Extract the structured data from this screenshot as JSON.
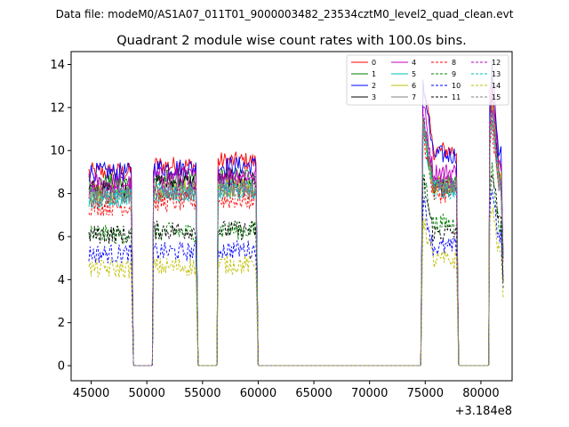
{
  "figure": {
    "suptitle": "Data file: modeM0/AS1A07_011T01_9000003482_23534cztM0_level2_quad_clean.evt"
  },
  "chart_data": {
    "type": "line",
    "title": "Quadrant 2 module wise count rates with 100.0s bins.",
    "xlabel": "",
    "ylabel": "",
    "x_offset_label": "+3.184e8",
    "xlim": [
      43200,
      82800
    ],
    "ylim": [
      -0.7,
      14.6
    ],
    "x_ticks": [
      45000,
      50000,
      55000,
      60000,
      65000,
      70000,
      75000,
      80000
    ],
    "x_tick_labels": [
      "45000",
      "50000",
      "55000",
      "60000",
      "65000",
      "70000",
      "75000",
      "80000"
    ],
    "y_ticks": [
      0,
      2,
      4,
      6,
      8,
      10,
      12,
      14
    ],
    "y_tick_labels": [
      "0",
      "2",
      "4",
      "6",
      "8",
      "10",
      "12",
      "14"
    ],
    "grid": false,
    "legend_position": "top-right",
    "gti_segments": [
      [
        44800,
        48600
      ],
      [
        50600,
        54400
      ],
      [
        56400,
        59800
      ],
      [
        74800,
        77800
      ],
      [
        80800,
        81800
      ]
    ],
    "gap_points": [
      [
        48800,
        0.05
      ],
      [
        48900,
        0
      ],
      [
        50400,
        0
      ],
      [
        50500,
        0.05
      ],
      [
        54600,
        0.05
      ],
      [
        54700,
        0
      ],
      [
        56200,
        0
      ],
      [
        56300,
        0.05
      ],
      [
        60000,
        0.05
      ],
      [
        60100,
        0
      ],
      [
        74500,
        0
      ],
      [
        74600,
        0.05
      ],
      [
        78000,
        0.05
      ],
      [
        78100,
        0
      ],
      [
        80600,
        0
      ],
      [
        80700,
        0.05
      ],
      [
        82000,
        4.8
      ]
    ],
    "series": [
      {
        "name": "0",
        "color": "#ff0000",
        "dash": "solid",
        "levels": [
          9.0,
          9.3,
          9.5,
          10.0,
          9.4
        ],
        "flare": 1.5
      },
      {
        "name": "1",
        "color": "#008000",
        "dash": "solid",
        "levels": [
          8.5,
          8.7,
          8.8,
          8.4,
          8.9
        ],
        "flare": 1.4
      },
      {
        "name": "2",
        "color": "#0000ff",
        "dash": "solid",
        "levels": [
          9.0,
          9.2,
          9.3,
          9.8,
          10.0
        ],
        "flare": 1.6
      },
      {
        "name": "3",
        "color": "#000000",
        "dash": "solid",
        "levels": [
          8.2,
          8.5,
          8.6,
          8.3,
          8.8
        ],
        "flare": 1.4
      },
      {
        "name": "4",
        "color": "#bf00bf",
        "dash": "solid",
        "levels": [
          8.5,
          8.8,
          8.9,
          9.0,
          9.2
        ],
        "flare": 1.5
      },
      {
        "name": "5",
        "color": "#00bfbf",
        "dash": "solid",
        "levels": [
          7.8,
          8.0,
          8.2,
          8.2,
          8.6
        ],
        "flare": 1.4
      },
      {
        "name": "6",
        "color": "#bfbf00",
        "dash": "solid",
        "levels": [
          8.0,
          8.2,
          8.3,
          8.4,
          8.7
        ],
        "flare": 1.3
      },
      {
        "name": "7",
        "color": "#808080",
        "dash": "solid",
        "levels": [
          7.9,
          8.1,
          8.2,
          8.4,
          8.6
        ],
        "flare": 1.4
      },
      {
        "name": "8",
        "color": "#ff0000",
        "dash": "dashed",
        "levels": [
          7.4,
          7.6,
          7.7,
          8.0,
          8.1
        ],
        "flare": 1.3
      },
      {
        "name": "9",
        "color": "#008000",
        "dash": "dashed",
        "levels": [
          6.1,
          6.2,
          6.3,
          6.6,
          6.5
        ],
        "flare": 1.1
      },
      {
        "name": "10",
        "color": "#0000ff",
        "dash": "dashed",
        "levels": [
          5.2,
          5.3,
          5.4,
          5.5,
          5.9
        ],
        "flare": 1.0
      },
      {
        "name": "11",
        "color": "#000000",
        "dash": "dashed",
        "levels": [
          6.1,
          6.3,
          6.3,
          6.2,
          6.6
        ],
        "flare": 1.1
      },
      {
        "name": "12",
        "color": "#bf00bf",
        "dash": "dashed",
        "levels": [
          8.2,
          8.3,
          8.5,
          8.6,
          8.8
        ],
        "flare": 1.4
      },
      {
        "name": "13",
        "color": "#00bfbf",
        "dash": "dashed",
        "levels": [
          7.9,
          8.1,
          8.2,
          8.2,
          8.5
        ],
        "flare": 1.3
      },
      {
        "name": "14",
        "color": "#bfbf00",
        "dash": "dashed",
        "levels": [
          4.5,
          4.6,
          4.7,
          4.9,
          5.3
        ],
        "flare": 0.9
      },
      {
        "name": "15",
        "color": "#808080",
        "dash": "dashed",
        "levels": [
          7.8,
          8.0,
          8.1,
          8.3,
          8.4
        ],
        "flare": 1.3
      }
    ]
  }
}
